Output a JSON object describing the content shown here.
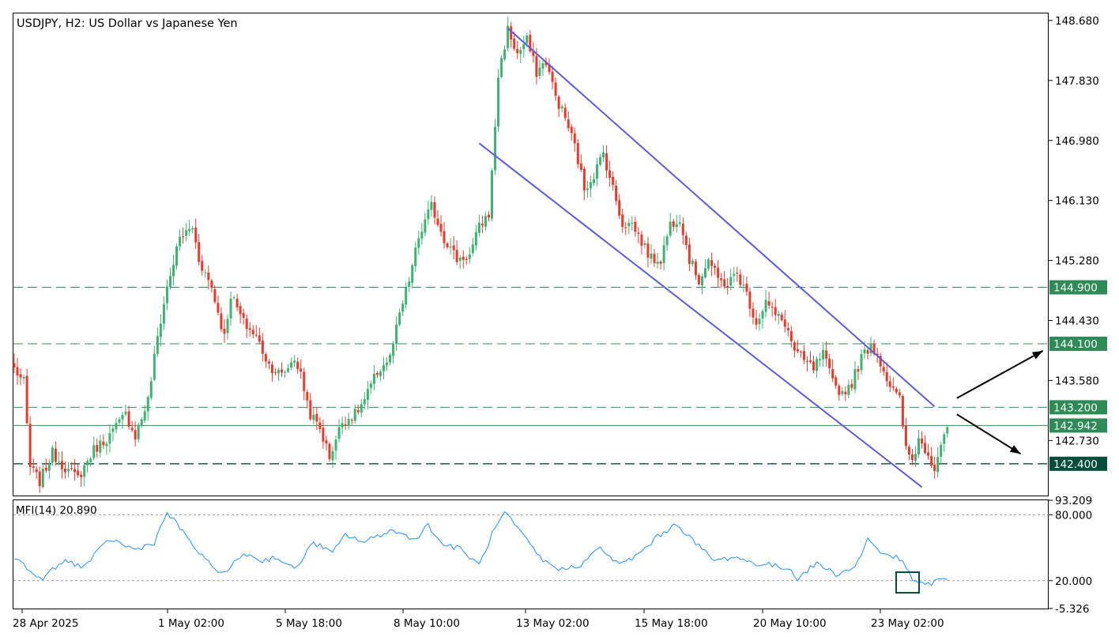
{
  "title": "USDJPY, H2:  US Dollar vs Japanese Yen",
  "indicator_label": "MFI(14) 20.890",
  "chart_data": [
    {
      "type": "candlestick",
      "symbol": "USDJPY",
      "timeframe": "H2",
      "description": "US Dollar vs Japanese Yen",
      "price_ticks": [
        "148.680",
        "147.830",
        "146.980",
        "146.130",
        "145.280",
        "144.430",
        "143.580",
        "142.730"
      ],
      "ylim": [
        141.95,
        148.78
      ],
      "time_labels": [
        "28 Apr 2025",
        "1 May 02:00",
        "5 May 18:00",
        "8 May 10:00",
        "13 May 02:00",
        "15 May 18:00",
        "20 May 10:00",
        "23 May 02:00"
      ],
      "current_price": {
        "value": 142.942,
        "label": "142.942"
      },
      "levels": [
        {
          "value": 144.9,
          "label": "144.900",
          "style": "dashed"
        },
        {
          "value": 144.1,
          "label": "144.100",
          "style": "dashed"
        },
        {
          "value": 143.2,
          "label": "143.200",
          "style": "dashed"
        },
        {
          "value": 142.4,
          "label": "142.400",
          "style": "dashed"
        }
      ],
      "waypoints": [
        [
          0,
          143.75
        ],
        [
          3,
          143.55
        ],
        [
          5,
          142.35
        ],
        [
          8,
          142.15
        ],
        [
          12,
          142.55
        ],
        [
          17,
          142.3
        ],
        [
          20,
          142.2
        ],
        [
          25,
          142.6
        ],
        [
          30,
          142.8
        ],
        [
          35,
          143.1
        ],
        [
          38,
          142.8
        ],
        [
          42,
          143.3
        ],
        [
          45,
          144.2
        ],
        [
          48,
          144.9
        ],
        [
          52,
          145.6
        ],
        [
          56,
          145.75
        ],
        [
          58,
          145.3
        ],
        [
          62,
          144.9
        ],
        [
          66,
          144.2
        ],
        [
          68,
          144.8
        ],
        [
          72,
          144.4
        ],
        [
          76,
          144.2
        ],
        [
          80,
          143.8
        ],
        [
          84,
          143.65
        ],
        [
          88,
          143.9
        ],
        [
          90,
          143.65
        ],
        [
          93,
          143.1
        ],
        [
          96,
          142.9
        ],
        [
          99,
          142.5
        ],
        [
          103,
          143.0
        ],
        [
          107,
          143.1
        ],
        [
          110,
          143.3
        ],
        [
          114,
          143.7
        ],
        [
          118,
          143.9
        ],
        [
          121,
          144.5
        ],
        [
          124,
          145.0
        ],
        [
          127,
          145.6
        ],
        [
          131,
          146.05
        ],
        [
          135,
          145.6
        ],
        [
          139,
          145.3
        ],
        [
          143,
          145.35
        ],
        [
          146,
          145.75
        ],
        [
          149,
          145.95
        ],
        [
          150,
          146.5
        ],
        [
          152,
          147.9
        ],
        [
          155,
          148.55
        ],
        [
          158,
          148.2
        ],
        [
          161,
          148.4
        ],
        [
          164,
          147.95
        ],
        [
          167,
          148.1
        ],
        [
          170,
          147.6
        ],
        [
          173,
          147.3
        ],
        [
          176,
          146.9
        ],
        [
          179,
          146.3
        ],
        [
          182,
          146.5
        ],
        [
          185,
          146.8
        ],
        [
          188,
          146.3
        ],
        [
          191,
          145.8
        ],
        [
          194,
          145.8
        ],
        [
          197,
          145.55
        ],
        [
          200,
          145.3
        ],
        [
          203,
          145.3
        ],
        [
          206,
          145.8
        ],
        [
          209,
          145.9
        ],
        [
          212,
          145.3
        ],
        [
          215,
          145.0
        ],
        [
          218,
          145.3
        ],
        [
          221,
          145.0
        ],
        [
          224,
          144.95
        ],
        [
          227,
          145.1
        ],
        [
          230,
          144.8
        ],
        [
          233,
          144.4
        ],
        [
          236,
          144.7
        ],
        [
          239,
          144.5
        ],
        [
          242,
          144.4
        ],
        [
          245,
          144.0
        ],
        [
          248,
          143.85
        ],
        [
          251,
          143.75
        ],
        [
          254,
          143.95
        ],
        [
          257,
          143.55
        ],
        [
          260,
          143.4
        ],
        [
          263,
          143.55
        ],
        [
          266,
          143.9
        ],
        [
          269,
          144.1
        ],
        [
          272,
          143.85
        ],
        [
          275,
          143.5
        ],
        [
          278,
          143.3
        ],
        [
          280,
          142.6
        ],
        [
          282,
          142.45
        ],
        [
          284,
          142.75
        ],
        [
          287,
          142.55
        ],
        [
          289,
          142.35
        ],
        [
          291,
          142.7
        ],
        [
          293,
          142.92
        ]
      ],
      "overlays": {
        "upper_channel": {
          "from": [
            155,
            148.57
          ],
          "to": [
            289,
            143.21
          ]
        },
        "lower_channel": {
          "from": [
            146,
            146.94
          ],
          "to": [
            285,
            142.07
          ]
        },
        "arrow_up": {
          "from": [
            296,
            143.33
          ],
          "to": [
            323,
            144.0
          ]
        },
        "arrow_down": {
          "from": [
            296,
            143.1
          ],
          "to": [
            316,
            142.54
          ]
        }
      }
    },
    {
      "type": "line",
      "name": "MFI(14)",
      "value_label": "20.890",
      "y_ticks": [
        "93.209",
        "80.000",
        "20.000",
        "-5.326"
      ],
      "ylim": [
        -5.326,
        93.209
      ],
      "reference_levels": [
        80,
        20
      ],
      "series_color": "#1e90ff",
      "x": [
        0,
        8,
        16,
        22,
        30,
        38,
        44,
        48,
        52,
        60,
        66,
        72,
        78,
        82,
        88,
        94,
        100,
        104,
        110,
        118,
        126,
        130,
        134,
        140,
        146,
        150,
        154,
        160,
        166,
        172,
        178,
        184,
        190,
        196,
        202,
        208,
        214,
        220,
        226,
        232,
        238,
        244,
        246,
        252,
        258,
        264,
        268,
        272,
        278,
        282,
        286,
        290,
        293
      ],
      "y": [
        42,
        21,
        38,
        33,
        58,
        48,
        55,
        82,
        68,
        38,
        26,
        45,
        38,
        42,
        30,
        55,
        45,
        62,
        55,
        66,
        58,
        71,
        54,
        49,
        34,
        62,
        82,
        60,
        38,
        30,
        35,
        50,
        34,
        44,
        60,
        72,
        54,
        38,
        42,
        36,
        34,
        30,
        22,
        36,
        26,
        32,
        58,
        46,
        40,
        22,
        15,
        21,
        21
      ]
    }
  ],
  "colors": {
    "bull": "#3cb371",
    "bear": "#e8392c",
    "channel": "#5b5bdc",
    "level": "#2e8b57",
    "level_dark": "#064e3b",
    "mfi_line": "#1e90ff",
    "arrow": "#000000"
  }
}
